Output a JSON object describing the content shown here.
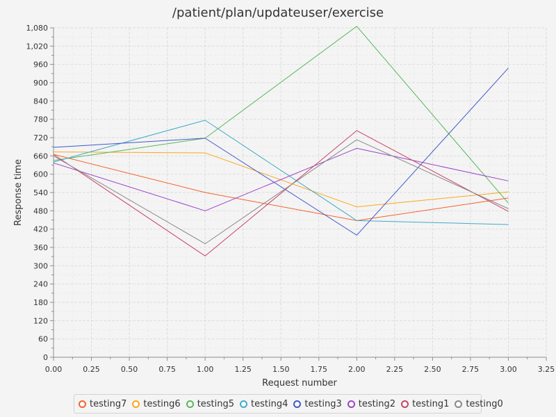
{
  "chart_data": {
    "type": "line",
    "title": "/patient/plan/updateuser/exercise",
    "xlabel": "Request number",
    "ylabel": "Response time",
    "xlim": [
      0,
      3.25
    ],
    "ylim": [
      0,
      1080
    ],
    "x_ticks": [
      0,
      0.25,
      0.5,
      0.75,
      1,
      1.25,
      1.5,
      1.75,
      2,
      2.25,
      2.5,
      2.75,
      3,
      3.25
    ],
    "x_tick_labels": [
      "0.00",
      "0.25",
      "0.50",
      "0.75",
      "1.00",
      "1.25",
      "1.50",
      "1.75",
      "2.00",
      "2.25",
      "2.50",
      "2.75",
      "3.00",
      "3.25"
    ],
    "y_ticks": [
      0,
      60,
      120,
      180,
      240,
      300,
      360,
      420,
      480,
      540,
      600,
      660,
      720,
      780,
      840,
      900,
      960,
      1020,
      1080
    ],
    "y_tick_labels": [
      "0",
      "60",
      "120",
      "180",
      "240",
      "300",
      "360",
      "420",
      "480",
      "540",
      "600",
      "660",
      "720",
      "780",
      "840",
      "900",
      "960",
      "1,020",
      "1,080"
    ],
    "grid": true,
    "legend_position": "bottom",
    "x": [
      0,
      1,
      2,
      3
    ],
    "series": [
      {
        "name": "testing7",
        "color": "#f3622d",
        "values": [
          665,
          540,
          448,
          522
        ]
      },
      {
        "name": "testing6",
        "color": "#fba71b",
        "values": [
          673,
          670,
          493,
          542
        ]
      },
      {
        "name": "testing5",
        "color": "#57b757",
        "values": [
          645,
          718,
          1085,
          505
        ]
      },
      {
        "name": "testing4",
        "color": "#41a9c9",
        "values": [
          640,
          777,
          448,
          435
        ]
      },
      {
        "name": "testing3",
        "color": "#4258c9",
        "values": [
          688,
          718,
          400,
          948
        ]
      },
      {
        "name": "testing2",
        "color": "#9a42c8",
        "values": [
          637,
          480,
          685,
          578
        ]
      },
      {
        "name": "testing1",
        "color": "#c84164",
        "values": [
          665,
          332,
          743,
          478
        ]
      },
      {
        "name": "testing0",
        "color": "#888888",
        "values": [
          660,
          372,
          713,
          487
        ]
      }
    ]
  }
}
